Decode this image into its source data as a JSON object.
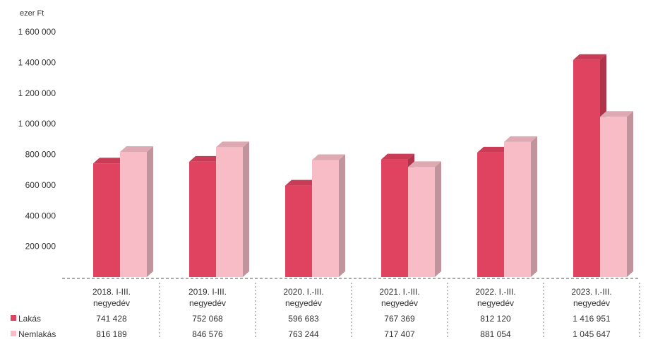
{
  "chart_data": {
    "type": "bar",
    "ylabel": "ezer Ft",
    "ylim": [
      0,
      1600000
    ],
    "yticks": [
      "200 000",
      "400 000",
      "600 000",
      "800 000",
      "1 000 000",
      "1 200 000",
      "1 400 000",
      "1 600 000"
    ],
    "ytick_values": [
      200000,
      400000,
      600000,
      800000,
      1000000,
      1200000,
      1400000,
      1600000
    ],
    "categories": [
      [
        "2018. I-III.",
        "negyedév"
      ],
      [
        "2019. I-III.",
        "negyedév"
      ],
      [
        "2020. I.-III.",
        "negyedév"
      ],
      [
        "2021. I.-III.",
        "negyedév"
      ],
      [
        "2022. I.-III.",
        "negyedév"
      ],
      [
        "2023. I.-III.",
        "negyedév"
      ]
    ],
    "series": [
      {
        "name": "Lakás",
        "color": "#e0435f",
        "values": [
          741428,
          752068,
          596683,
          767369,
          812120,
          1416951
        ],
        "labels": [
          "741 428",
          "752 068",
          "596 683",
          "767 369",
          "812 120",
          "1 416 951"
        ]
      },
      {
        "name": "Nemlakás",
        "color": "#f7bcc6",
        "values": [
          816189,
          846576,
          763244,
          717407,
          881054,
          1045647
        ],
        "labels": [
          "816 189",
          "846 576",
          "763 244",
          "717 407",
          "881 054",
          "1 045 647"
        ]
      }
    ],
    "grid": false,
    "legend": "left, inside data table"
  }
}
